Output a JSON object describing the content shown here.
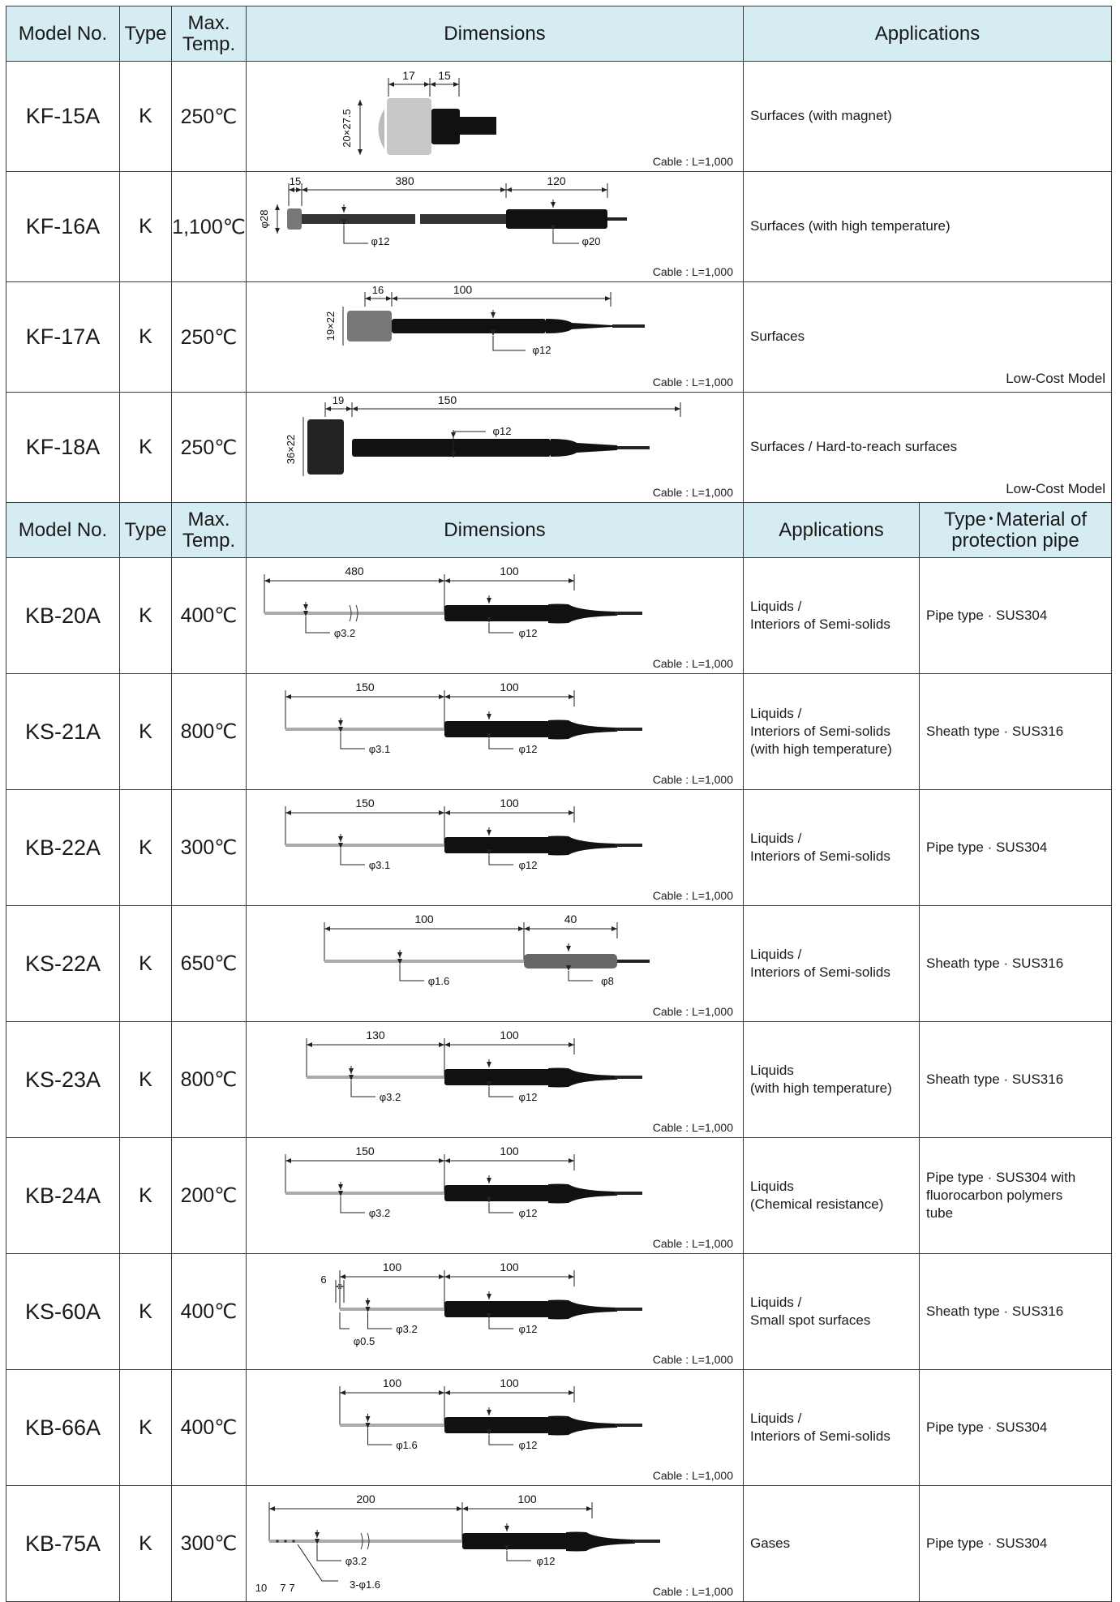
{
  "headers_a": {
    "model": "Model No.",
    "type": "Type",
    "temp_l1": "Max.",
    "temp_l2": "Temp.",
    "dim": "Dimensions",
    "app": "Applications"
  },
  "headers_b": {
    "model": "Model No.",
    "type": "Type",
    "temp_l1": "Max.",
    "temp_l2": "Temp.",
    "dim": "Dimensions",
    "app": "Applications",
    "mat_l1": "Type･Material of",
    "mat_l2": "protection pipe"
  },
  "cable_label": "Cable : L=1,000",
  "surface_rows": [
    {
      "model": "KF-15A",
      "type": "K",
      "temp": "250℃",
      "app": "Surfaces (with magnet)",
      "note": "",
      "dims": [
        "17",
        "15",
        "20×27.5"
      ]
    },
    {
      "model": "KF-16A",
      "type": "K",
      "temp": "1,100℃",
      "app": "Surfaces (with high temperature)",
      "note": "",
      "dims": [
        "15",
        "380",
        "120",
        "φ28",
        "φ12",
        "φ20"
      ]
    },
    {
      "model": "KF-17A",
      "type": "K",
      "temp": "250℃",
      "app": "Surfaces",
      "note": "Low-Cost Model",
      "dims": [
        "16",
        "100",
        "19×22",
        "φ12"
      ]
    },
    {
      "model": "KF-18A",
      "type": "K",
      "temp": "250℃",
      "app": "Surfaces / Hard-to-reach surfaces",
      "note": "Low-Cost Model",
      "dims": [
        "19",
        "150",
        "36×22",
        "φ12"
      ]
    }
  ],
  "probe_rows": [
    {
      "model": "KB-20A",
      "type": "K",
      "temp": "400℃",
      "app_l1": "Liquids /",
      "app_l2": "Interiors of Semi-solids",
      "app_l3": "",
      "mat_l1": "Pipe type · SUS304",
      "mat_l2": "",
      "mat_l3": "",
      "dims": [
        "480",
        "100",
        "φ3.2",
        "φ12"
      ]
    },
    {
      "model": "KS-21A",
      "type": "K",
      "temp": "800℃",
      "app_l1": "Liquids /",
      "app_l2": "Interiors of Semi-solids",
      "app_l3": "(with  high temperature)",
      "mat_l1": "Sheath type · SUS316",
      "mat_l2": "",
      "mat_l3": "",
      "dims": [
        "150",
        "100",
        "φ3.1",
        "φ12"
      ]
    },
    {
      "model": "KB-22A",
      "type": "K",
      "temp": "300℃",
      "app_l1": "Liquids /",
      "app_l2": "Interiors of Semi-solids",
      "app_l3": "",
      "mat_l1": "Pipe type · SUS304",
      "mat_l2": "",
      "mat_l3": "",
      "dims": [
        "150",
        "100",
        "φ3.1",
        "φ12"
      ]
    },
    {
      "model": "KS-22A",
      "type": "K",
      "temp": "650℃",
      "app_l1": "Liquids /",
      "app_l2": "Interiors of Semi-solids",
      "app_l3": "",
      "mat_l1": "Sheath type · SUS316",
      "mat_l2": "",
      "mat_l3": "",
      "dims": [
        "100",
        "40",
        "φ1.6",
        "φ8"
      ]
    },
    {
      "model": "KS-23A",
      "type": "K",
      "temp": "800℃",
      "app_l1": "Liquids",
      "app_l2": "(with high temperature)",
      "app_l3": "",
      "mat_l1": "Sheath type · SUS316",
      "mat_l2": "",
      "mat_l3": "",
      "dims": [
        "130",
        "100",
        "φ3.2",
        "φ12"
      ]
    },
    {
      "model": "KB-24A",
      "type": "K",
      "temp": "200℃",
      "app_l1": "Liquids",
      "app_l2": "(Chemical resistance)",
      "app_l3": "",
      "mat_l1": "Pipe type · SUS304 with",
      "mat_l2": "fluorocarbon polymers",
      "mat_l3": "tube",
      "dims": [
        "150",
        "100",
        "φ3.2",
        "φ12"
      ]
    },
    {
      "model": "KS-60A",
      "type": "K",
      "temp": "400℃",
      "app_l1": "Liquids /",
      "app_l2": "Small spot surfaces",
      "app_l3": "",
      "mat_l1": "Sheath type · SUS316",
      "mat_l2": "",
      "mat_l3": "",
      "dims": [
        "100",
        "100",
        "φ3.2",
        "φ12",
        "6",
        "φ0.5"
      ]
    },
    {
      "model": "KB-66A",
      "type": "K",
      "temp": "400℃",
      "app_l1": "Liquids /",
      "app_l2": "Interiors of Semi-solids",
      "app_l3": "",
      "mat_l1": "Pipe type · SUS304",
      "mat_l2": "",
      "mat_l3": "",
      "dims": [
        "100",
        "100",
        "φ1.6",
        "φ12"
      ]
    },
    {
      "model": "KB-75A",
      "type": "K",
      "temp": "300℃",
      "app_l1": "Gases",
      "app_l2": "",
      "app_l3": "",
      "mat_l1": "Pipe type · SUS304",
      "mat_l2": "",
      "mat_l3": "",
      "dims": [
        "200",
        "100",
        "φ3.2",
        "φ12",
        "10",
        "7",
        "7",
        "3-φ1.6"
      ]
    }
  ]
}
